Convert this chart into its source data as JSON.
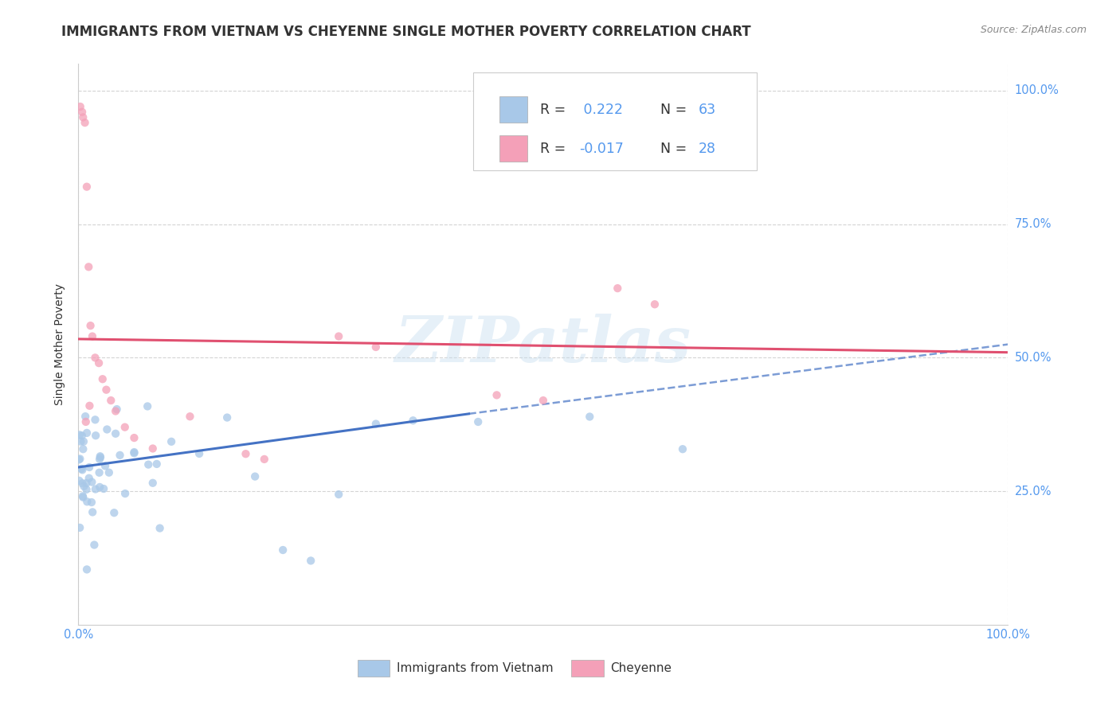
{
  "title": "IMMIGRANTS FROM VIETNAM VS CHEYENNE SINGLE MOTHER POVERTY CORRELATION CHART",
  "source": "Source: ZipAtlas.com",
  "ylabel": "Single Mother Poverty",
  "legend_labels": [
    "Immigrants from Vietnam",
    "Cheyenne"
  ],
  "R_vietnam": 0.222,
  "N_vietnam": 63,
  "R_cheyenne": -0.017,
  "N_cheyenne": 28,
  "blue_color": "#a8c8e8",
  "pink_color": "#f4a0b8",
  "blue_line_color": "#4472c4",
  "pink_line_color": "#e05070",
  "watermark": "ZIPatlas",
  "title_fontsize": 12,
  "axis_label_fontsize": 10,
  "tick_fontsize": 10.5,
  "dot_size": 55,
  "dot_alpha": 0.75,
  "label_color": "#5599ee",
  "text_color": "#333333"
}
